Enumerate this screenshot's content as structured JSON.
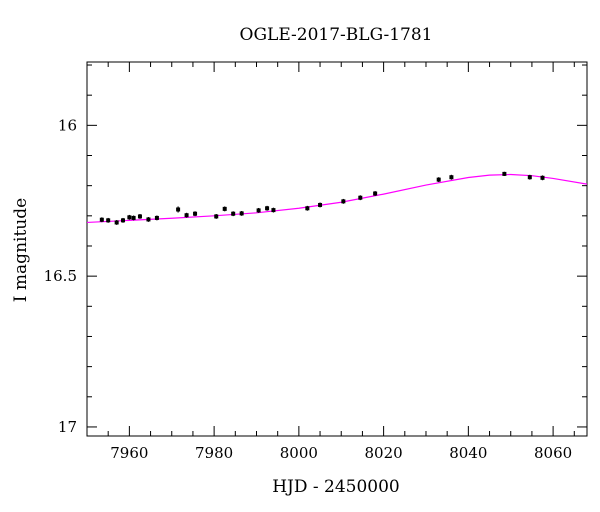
{
  "chart_data": {
    "type": "scatter",
    "title": "OGLE-2017-BLG-1781",
    "xlabel": "HJD - 2450000",
    "ylabel": "I magnitude",
    "xlim": [
      7950,
      8068
    ],
    "ylim": [
      17.03,
      15.79
    ],
    "y_inverted": true,
    "x_ticks": [
      7960,
      7980,
      8000,
      8020,
      8040,
      8060
    ],
    "x_tick_labels": [
      "7960",
      "7980",
      "8000",
      "8020",
      "8040",
      "8060"
    ],
    "y_ticks": [
      16,
      16.5,
      17
    ],
    "y_tick_labels": [
      "16",
      "16.5",
      "17"
    ],
    "x_minor_step": 5,
    "y_minor_step": 0.1,
    "grid": false,
    "colors": {
      "data": "#000000",
      "model": "#ff00ff",
      "axes": "#000000"
    },
    "series": [
      {
        "kind": "points",
        "error_bars": true,
        "x": [
          7953.5,
          7955.0,
          7957.0,
          7958.5,
          7960.0,
          7961.0,
          7962.5,
          7964.5,
          7966.5,
          7971.5,
          7973.5,
          7975.5,
          7980.5,
          7982.5,
          7984.5,
          7986.5,
          7990.5,
          7992.5,
          7994.0,
          8002.0,
          8005.0,
          8010.5,
          8014.5,
          8018.0,
          8033.0,
          8036.0,
          8048.5,
          8054.5,
          8057.5
        ],
        "y": [
          16.313,
          16.315,
          16.322,
          16.315,
          16.305,
          16.307,
          16.302,
          16.312,
          16.307,
          16.279,
          16.298,
          16.293,
          16.302,
          16.277,
          16.293,
          16.292,
          16.282,
          16.275,
          16.281,
          16.275,
          16.264,
          16.252,
          16.24,
          16.226,
          16.18,
          16.172,
          16.161,
          16.172,
          16.174
        ],
        "y_err": [
          0.008,
          0.008,
          0.008,
          0.008,
          0.008,
          0.008,
          0.008,
          0.008,
          0.008,
          0.01,
          0.008,
          0.008,
          0.008,
          0.008,
          0.008,
          0.008,
          0.008,
          0.008,
          0.008,
          0.008,
          0.008,
          0.008,
          0.008,
          0.008,
          0.008,
          0.008,
          0.007,
          0.008,
          0.008
        ]
      },
      {
        "kind": "model-curve",
        "x": [
          7950,
          7960,
          7970,
          7980,
          7990,
          8000,
          8010,
          8020,
          8030,
          8040,
          8045,
          8050,
          8055,
          8060,
          8068
        ],
        "y": [
          16.322,
          16.315,
          16.308,
          16.3,
          16.29,
          16.275,
          16.255,
          16.228,
          16.198,
          16.173,
          16.165,
          16.163,
          16.167,
          16.176,
          16.195
        ]
      }
    ]
  }
}
